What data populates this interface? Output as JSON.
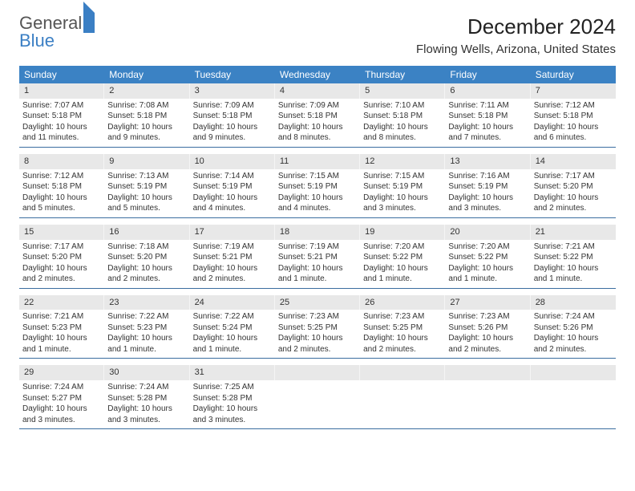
{
  "brand": {
    "part1": "General",
    "part2": "Blue"
  },
  "title": "December 2024",
  "location": "Flowing Wells, Arizona, United States",
  "colors": {
    "header_bg": "#3b82c4",
    "daynum_bg": "#e8e8e8",
    "week_border": "#3b6ea0",
    "text": "#333333",
    "brand_blue": "#3b7fc4"
  },
  "days_of_week": [
    "Sunday",
    "Monday",
    "Tuesday",
    "Wednesday",
    "Thursday",
    "Friday",
    "Saturday"
  ],
  "weeks": [
    [
      {
        "n": "1",
        "sr": "Sunrise: 7:07 AM",
        "ss": "Sunset: 5:18 PM",
        "dl": "Daylight: 10 hours and 11 minutes."
      },
      {
        "n": "2",
        "sr": "Sunrise: 7:08 AM",
        "ss": "Sunset: 5:18 PM",
        "dl": "Daylight: 10 hours and 9 minutes."
      },
      {
        "n": "3",
        "sr": "Sunrise: 7:09 AM",
        "ss": "Sunset: 5:18 PM",
        "dl": "Daylight: 10 hours and 9 minutes."
      },
      {
        "n": "4",
        "sr": "Sunrise: 7:09 AM",
        "ss": "Sunset: 5:18 PM",
        "dl": "Daylight: 10 hours and 8 minutes."
      },
      {
        "n": "5",
        "sr": "Sunrise: 7:10 AM",
        "ss": "Sunset: 5:18 PM",
        "dl": "Daylight: 10 hours and 8 minutes."
      },
      {
        "n": "6",
        "sr": "Sunrise: 7:11 AM",
        "ss": "Sunset: 5:18 PM",
        "dl": "Daylight: 10 hours and 7 minutes."
      },
      {
        "n": "7",
        "sr": "Sunrise: 7:12 AM",
        "ss": "Sunset: 5:18 PM",
        "dl": "Daylight: 10 hours and 6 minutes."
      }
    ],
    [
      {
        "n": "8",
        "sr": "Sunrise: 7:12 AM",
        "ss": "Sunset: 5:18 PM",
        "dl": "Daylight: 10 hours and 5 minutes."
      },
      {
        "n": "9",
        "sr": "Sunrise: 7:13 AM",
        "ss": "Sunset: 5:19 PM",
        "dl": "Daylight: 10 hours and 5 minutes."
      },
      {
        "n": "10",
        "sr": "Sunrise: 7:14 AM",
        "ss": "Sunset: 5:19 PM",
        "dl": "Daylight: 10 hours and 4 minutes."
      },
      {
        "n": "11",
        "sr": "Sunrise: 7:15 AM",
        "ss": "Sunset: 5:19 PM",
        "dl": "Daylight: 10 hours and 4 minutes."
      },
      {
        "n": "12",
        "sr": "Sunrise: 7:15 AM",
        "ss": "Sunset: 5:19 PM",
        "dl": "Daylight: 10 hours and 3 minutes."
      },
      {
        "n": "13",
        "sr": "Sunrise: 7:16 AM",
        "ss": "Sunset: 5:19 PM",
        "dl": "Daylight: 10 hours and 3 minutes."
      },
      {
        "n": "14",
        "sr": "Sunrise: 7:17 AM",
        "ss": "Sunset: 5:20 PM",
        "dl": "Daylight: 10 hours and 2 minutes."
      }
    ],
    [
      {
        "n": "15",
        "sr": "Sunrise: 7:17 AM",
        "ss": "Sunset: 5:20 PM",
        "dl": "Daylight: 10 hours and 2 minutes."
      },
      {
        "n": "16",
        "sr": "Sunrise: 7:18 AM",
        "ss": "Sunset: 5:20 PM",
        "dl": "Daylight: 10 hours and 2 minutes."
      },
      {
        "n": "17",
        "sr": "Sunrise: 7:19 AM",
        "ss": "Sunset: 5:21 PM",
        "dl": "Daylight: 10 hours and 2 minutes."
      },
      {
        "n": "18",
        "sr": "Sunrise: 7:19 AM",
        "ss": "Sunset: 5:21 PM",
        "dl": "Daylight: 10 hours and 1 minute."
      },
      {
        "n": "19",
        "sr": "Sunrise: 7:20 AM",
        "ss": "Sunset: 5:22 PM",
        "dl": "Daylight: 10 hours and 1 minute."
      },
      {
        "n": "20",
        "sr": "Sunrise: 7:20 AM",
        "ss": "Sunset: 5:22 PM",
        "dl": "Daylight: 10 hours and 1 minute."
      },
      {
        "n": "21",
        "sr": "Sunrise: 7:21 AM",
        "ss": "Sunset: 5:22 PM",
        "dl": "Daylight: 10 hours and 1 minute."
      }
    ],
    [
      {
        "n": "22",
        "sr": "Sunrise: 7:21 AM",
        "ss": "Sunset: 5:23 PM",
        "dl": "Daylight: 10 hours and 1 minute."
      },
      {
        "n": "23",
        "sr": "Sunrise: 7:22 AM",
        "ss": "Sunset: 5:23 PM",
        "dl": "Daylight: 10 hours and 1 minute."
      },
      {
        "n": "24",
        "sr": "Sunrise: 7:22 AM",
        "ss": "Sunset: 5:24 PM",
        "dl": "Daylight: 10 hours and 1 minute."
      },
      {
        "n": "25",
        "sr": "Sunrise: 7:23 AM",
        "ss": "Sunset: 5:25 PM",
        "dl": "Daylight: 10 hours and 2 minutes."
      },
      {
        "n": "26",
        "sr": "Sunrise: 7:23 AM",
        "ss": "Sunset: 5:25 PM",
        "dl": "Daylight: 10 hours and 2 minutes."
      },
      {
        "n": "27",
        "sr": "Sunrise: 7:23 AM",
        "ss": "Sunset: 5:26 PM",
        "dl": "Daylight: 10 hours and 2 minutes."
      },
      {
        "n": "28",
        "sr": "Sunrise: 7:24 AM",
        "ss": "Sunset: 5:26 PM",
        "dl": "Daylight: 10 hours and 2 minutes."
      }
    ],
    [
      {
        "n": "29",
        "sr": "Sunrise: 7:24 AM",
        "ss": "Sunset: 5:27 PM",
        "dl": "Daylight: 10 hours and 3 minutes."
      },
      {
        "n": "30",
        "sr": "Sunrise: 7:24 AM",
        "ss": "Sunset: 5:28 PM",
        "dl": "Daylight: 10 hours and 3 minutes."
      },
      {
        "n": "31",
        "sr": "Sunrise: 7:25 AM",
        "ss": "Sunset: 5:28 PM",
        "dl": "Daylight: 10 hours and 3 minutes."
      },
      {
        "n": "",
        "sr": "",
        "ss": "",
        "dl": "",
        "empty": true
      },
      {
        "n": "",
        "sr": "",
        "ss": "",
        "dl": "",
        "empty": true
      },
      {
        "n": "",
        "sr": "",
        "ss": "",
        "dl": "",
        "empty": true
      },
      {
        "n": "",
        "sr": "",
        "ss": "",
        "dl": "",
        "empty": true
      }
    ]
  ]
}
